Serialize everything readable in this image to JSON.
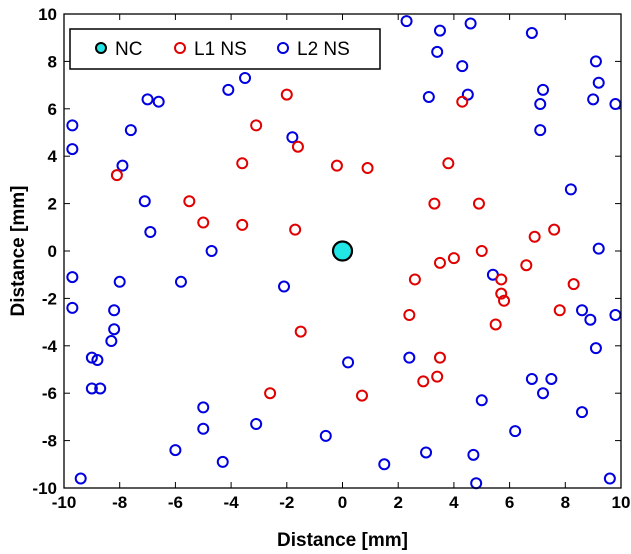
{
  "chart_data": {
    "type": "scatter",
    "xlabel": "Distance [mm]",
    "ylabel": "Distance [mm]",
    "xlim": [
      -10,
      10
    ],
    "ylim": [
      -10,
      10
    ],
    "xticks": [
      -10,
      -8,
      -6,
      -4,
      -2,
      0,
      2,
      4,
      6,
      8,
      10
    ],
    "yticks": [
      -10,
      -8,
      -6,
      -4,
      -2,
      0,
      2,
      4,
      6,
      8,
      10
    ],
    "legend_position": "top-left",
    "series": [
      {
        "name": "NC",
        "color": "#000000",
        "fill": "#22e6e6",
        "marker": "filled-circle",
        "points": [
          [
            0,
            0
          ]
        ]
      },
      {
        "name": "L1 NS",
        "color": "#e00000",
        "marker": "open-circle",
        "points": [
          [
            -2.0,
            6.6
          ],
          [
            -3.1,
            5.3
          ],
          [
            -3.6,
            3.7
          ],
          [
            -1.6,
            4.4
          ],
          [
            -0.2,
            3.6
          ],
          [
            0.9,
            3.5
          ],
          [
            -8.1,
            3.2
          ],
          [
            -5.5,
            2.1
          ],
          [
            -5.0,
            1.2
          ],
          [
            -3.6,
            1.1
          ],
          [
            -1.7,
            0.9
          ],
          [
            4.3,
            6.3
          ],
          [
            3.8,
            3.7
          ],
          [
            3.3,
            2.0
          ],
          [
            4.9,
            2.0
          ],
          [
            3.5,
            -0.5
          ],
          [
            4.0,
            -0.3
          ],
          [
            5.0,
            0.0
          ],
          [
            6.9,
            0.6
          ],
          [
            7.6,
            0.9
          ],
          [
            6.6,
            -0.6
          ],
          [
            5.7,
            -1.2
          ],
          [
            5.7,
            -1.8
          ],
          [
            5.8,
            -2.1
          ],
          [
            5.5,
            -3.1
          ],
          [
            7.8,
            -2.5
          ],
          [
            8.3,
            -1.4
          ],
          [
            2.6,
            -1.2
          ],
          [
            2.4,
            -2.7
          ],
          [
            -1.5,
            -3.4
          ],
          [
            3.5,
            -4.5
          ],
          [
            3.4,
            -5.3
          ],
          [
            2.9,
            -5.5
          ],
          [
            -2.6,
            -6.0
          ],
          [
            0.7,
            -6.1
          ]
        ]
      },
      {
        "name": "L2 NS",
        "color": "#0000e0",
        "marker": "open-circle",
        "points": [
          [
            2.3,
            9.7
          ],
          [
            3.5,
            9.3
          ],
          [
            4.6,
            9.6
          ],
          [
            6.8,
            9.2
          ],
          [
            3.4,
            8.4
          ],
          [
            4.3,
            7.8
          ],
          [
            9.1,
            8.0
          ],
          [
            9.2,
            7.1
          ],
          [
            7.2,
            6.8
          ],
          [
            7.1,
            6.2
          ],
          [
            9.0,
            6.4
          ],
          [
            9.8,
            6.2
          ],
          [
            3.1,
            6.5
          ],
          [
            4.5,
            6.6
          ],
          [
            7.1,
            5.1
          ],
          [
            -3.5,
            7.3
          ],
          [
            -4.1,
            6.8
          ],
          [
            -7.0,
            6.4
          ],
          [
            -6.6,
            6.3
          ],
          [
            -9.7,
            5.3
          ],
          [
            -9.7,
            4.3
          ],
          [
            -7.6,
            5.1
          ],
          [
            -7.9,
            3.6
          ],
          [
            -1.8,
            4.8
          ],
          [
            -7.1,
            2.1
          ],
          [
            -6.9,
            0.8
          ],
          [
            -4.7,
            0.0
          ],
          [
            8.2,
            2.6
          ],
          [
            9.2,
            0.1
          ],
          [
            -9.7,
            -1.1
          ],
          [
            -9.7,
            -2.4
          ],
          [
            -8.0,
            -1.3
          ],
          [
            -5.8,
            -1.3
          ],
          [
            -2.1,
            -1.5
          ],
          [
            -8.2,
            -2.5
          ],
          [
            -8.2,
            -3.3
          ],
          [
            -8.3,
            -3.8
          ],
          [
            5.4,
            -1.0
          ],
          [
            8.6,
            -2.5
          ],
          [
            8.9,
            -2.9
          ],
          [
            9.8,
            -2.7
          ],
          [
            9.1,
            -4.1
          ],
          [
            -9.0,
            -4.5
          ],
          [
            -8.8,
            -4.6
          ],
          [
            -9.0,
            -5.8
          ],
          [
            -8.7,
            -5.8
          ],
          [
            2.4,
            -4.5
          ],
          [
            0.2,
            -4.7
          ],
          [
            -5.0,
            -6.6
          ],
          [
            -5.0,
            -7.5
          ],
          [
            -3.1,
            -7.3
          ],
          [
            6.8,
            -5.4
          ],
          [
            7.2,
            -6.0
          ],
          [
            7.5,
            -5.4
          ],
          [
            5.0,
            -6.3
          ],
          [
            8.6,
            -6.8
          ],
          [
            -0.6,
            -7.8
          ],
          [
            6.2,
            -7.6
          ],
          [
            -6.0,
            -8.4
          ],
          [
            -4.3,
            -8.9
          ],
          [
            3.0,
            -8.5
          ],
          [
            4.7,
            -8.6
          ],
          [
            1.5,
            -9.0
          ],
          [
            -9.4,
            -9.6
          ],
          [
            4.8,
            -9.8
          ],
          [
            9.6,
            -9.6
          ]
        ]
      }
    ]
  }
}
